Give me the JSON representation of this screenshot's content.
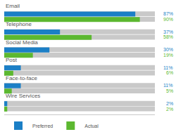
{
  "chart_data": {
    "type": "bar",
    "orientation": "horizontal",
    "categories": [
      "Email",
      "Telephone",
      "Social Media",
      "Post",
      "Face-to-face",
      "Wire Services"
    ],
    "series": [
      {
        "name": "Preferred",
        "color": "#1b7fc6",
        "values": [
          87,
          37,
          30,
          11,
          11,
          2
        ],
        "value_labels": [
          "87%",
          "37%",
          "30%",
          "11%",
          "11%",
          "2%"
        ]
      },
      {
        "name": "Actual",
        "color": "#5cb830",
        "values": [
          90,
          58,
          19,
          6,
          5,
          2
        ],
        "value_labels": [
          "90%",
          "58%",
          "19%",
          "6%",
          "5%",
          "2%"
        ]
      }
    ],
    "xlim": [
      0,
      100
    ],
    "tick_labels": false,
    "data_labels": true,
    "legend": "bottom left"
  }
}
